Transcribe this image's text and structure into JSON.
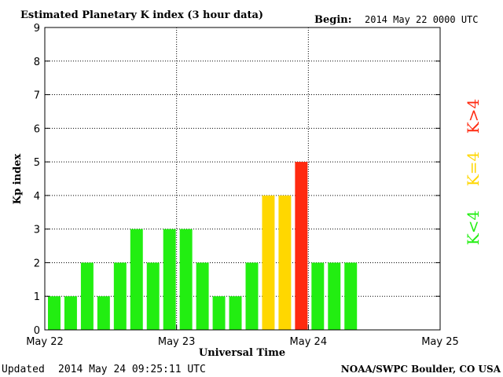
{
  "header": {
    "title": "Estimated Planetary K index (3 hour data)",
    "begin_label": "Begin:",
    "begin_value": "2014 May 22 0000 UTC"
  },
  "footer": {
    "updated_label": "Updated",
    "updated_value": "2014 May 24 09:25:11 UTC",
    "source": "NOAA/SWPC Boulder, CO USA"
  },
  "legend": {
    "low": "K<4",
    "mid": "K=4",
    "high": "K>4"
  },
  "colors": {
    "low": "#22ee11",
    "mid": "#ffd700",
    "high": "#ff2a10"
  },
  "chart_data": {
    "type": "bar",
    "title": "Estimated Planetary K index (3 hour data)",
    "xlabel": "Universal Time",
    "ylabel": "Kp index",
    "ylim": [
      0,
      9
    ],
    "yticks": [
      0,
      1,
      2,
      3,
      4,
      5,
      6,
      7,
      8,
      9
    ],
    "x_tick_labels": [
      "May 22",
      "May 23",
      "May 24",
      "May 25"
    ],
    "grid": true,
    "values": [
      1,
      1,
      2,
      1,
      2,
      3,
      2,
      3,
      3,
      2,
      1,
      1,
      2,
      4,
      4,
      5,
      2,
      2,
      2
    ]
  }
}
